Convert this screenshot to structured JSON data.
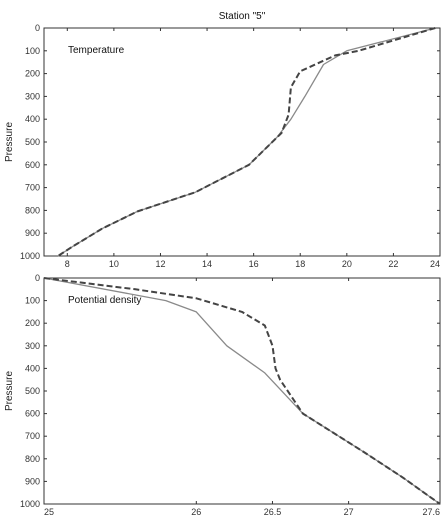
{
  "chart_data": [
    {
      "type": "line",
      "title": "Station \"5\"",
      "annotation": "Temperature",
      "xlabel": "",
      "ylabel": "Pressure",
      "xlim": [
        7,
        24
      ],
      "ylim": [
        1000,
        0
      ],
      "xticks": [
        8,
        10,
        12,
        14,
        16,
        18,
        20,
        22,
        24
      ],
      "yticks": [
        0,
        100,
        200,
        300,
        400,
        500,
        600,
        700,
        800,
        900,
        1000
      ],
      "grid": false,
      "series": [
        {
          "style": "solid",
          "color": "#8a8a8a",
          "points": [
            [
              23.8,
              0
            ],
            [
              20.0,
              100
            ],
            [
              19.0,
              160
            ],
            [
              18.2,
              300
            ],
            [
              17.6,
              400
            ],
            [
              17.0,
              480
            ],
            [
              15.8,
              600
            ],
            [
              13.5,
              720
            ],
            [
              11.0,
              805
            ],
            [
              9.5,
              880
            ],
            [
              8.2,
              960
            ],
            [
              7.6,
              1000
            ]
          ]
        },
        {
          "style": "dashed",
          "color": "#444444",
          "points": [
            [
              23.8,
              0
            ],
            [
              20.5,
              100
            ],
            [
              19.5,
              120
            ],
            [
              18.0,
              190
            ],
            [
              17.6,
              260
            ],
            [
              17.5,
              380
            ],
            [
              17.2,
              460
            ],
            [
              16.5,
              530
            ],
            [
              15.8,
              600
            ],
            [
              13.5,
              720
            ],
            [
              11.0,
              805
            ],
            [
              9.5,
              880
            ],
            [
              8.2,
              960
            ],
            [
              7.6,
              1000
            ]
          ]
        }
      ]
    },
    {
      "type": "line",
      "annotation": "Potential density",
      "xlabel": "",
      "ylabel": "Pressure",
      "xlim": [
        25,
        27.6
      ],
      "ylim": [
        1000,
        0
      ],
      "xticks": [
        25,
        26,
        26.5,
        27,
        27.6
      ],
      "xticklabels": [
        "25",
        "26",
        "26.5",
        "27",
        "27.6"
      ],
      "yticks": [
        0,
        100,
        200,
        300,
        400,
        500,
        600,
        700,
        800,
        900,
        1000
      ],
      "grid": false,
      "series": [
        {
          "style": "solid",
          "color": "#8a8a8a",
          "points": [
            [
              25.0,
              0
            ],
            [
              25.8,
              100
            ],
            [
              26.0,
              150
            ],
            [
              26.2,
              300
            ],
            [
              26.45,
              420
            ],
            [
              26.7,
              600
            ],
            [
              27.1,
              770
            ],
            [
              27.35,
              880
            ],
            [
              27.6,
              1000
            ]
          ]
        },
        {
          "style": "dashed",
          "color": "#444444",
          "points": [
            [
              25.0,
              0
            ],
            [
              25.6,
              50
            ],
            [
              26.0,
              90
            ],
            [
              26.3,
              150
            ],
            [
              26.45,
              210
            ],
            [
              26.5,
              300
            ],
            [
              26.52,
              400
            ],
            [
              26.55,
              450
            ],
            [
              26.7,
              600
            ],
            [
              27.1,
              770
            ],
            [
              27.35,
              880
            ],
            [
              27.6,
              1000
            ]
          ]
        }
      ]
    }
  ]
}
